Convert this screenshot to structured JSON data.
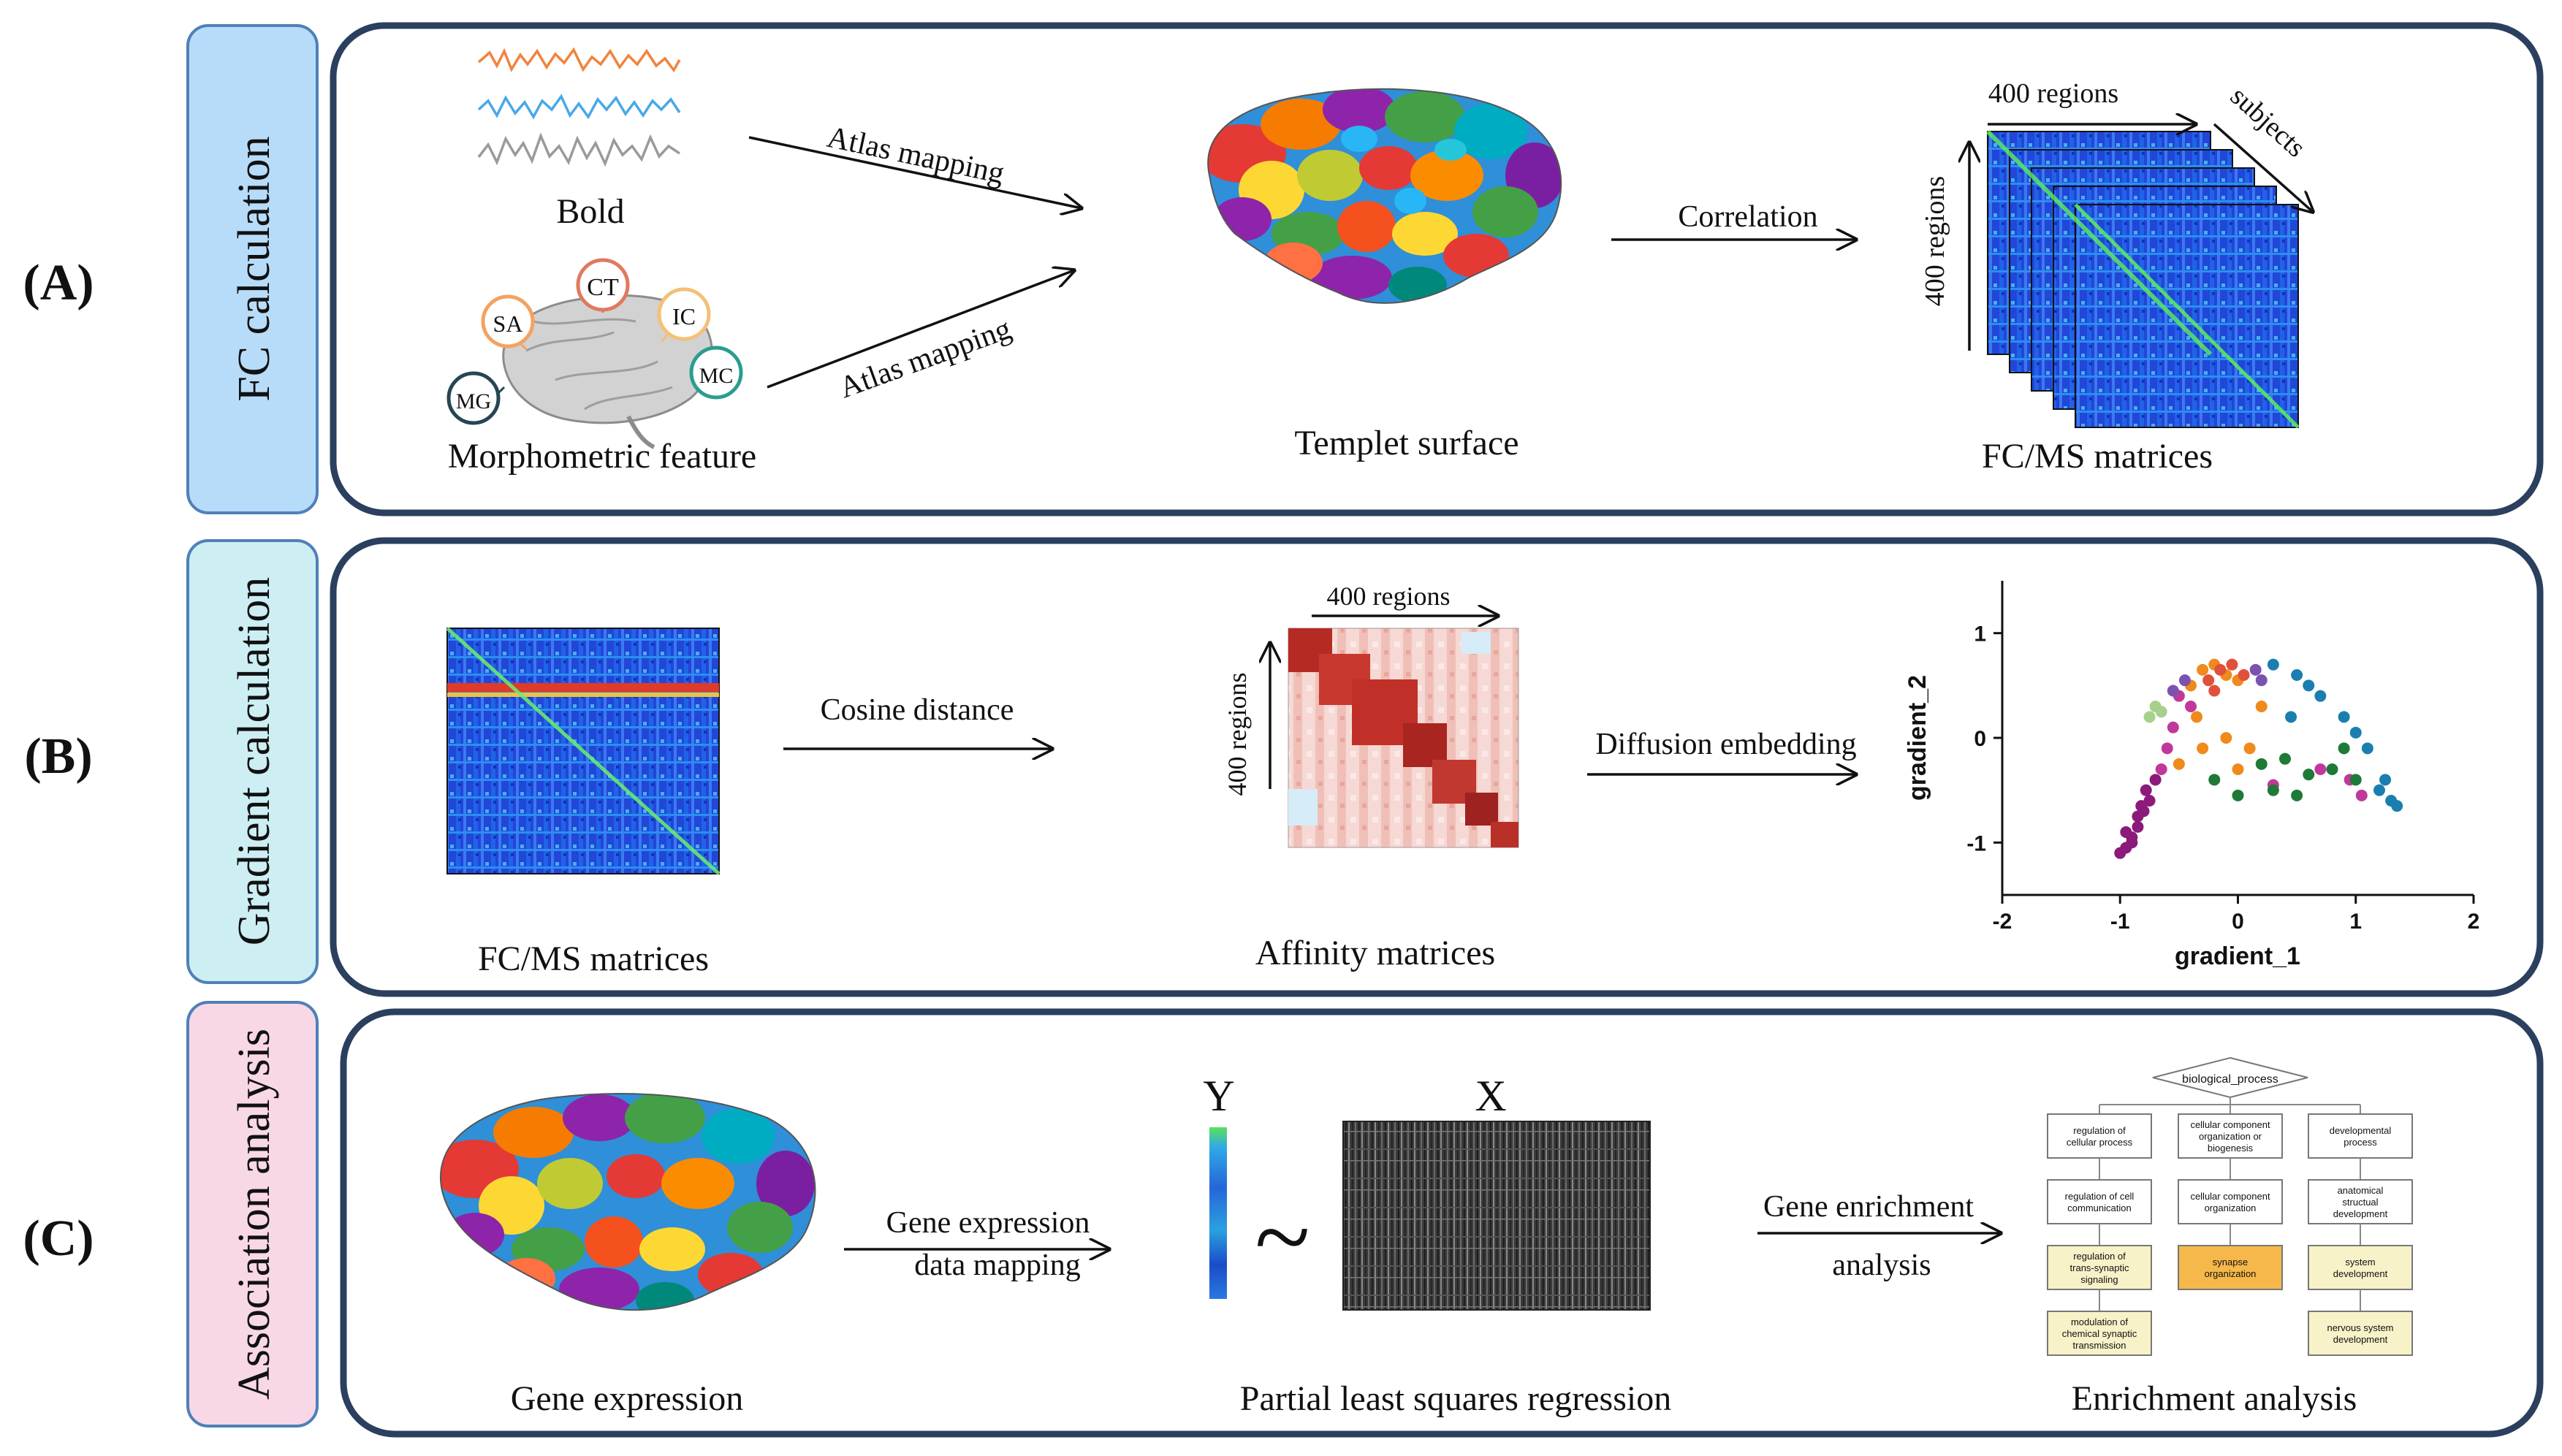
{
  "panels": {
    "a": {
      "letter": "(A)",
      "tab_label": "FC calculation",
      "tab_color": "#b7dcf9",
      "bold_label": "Bold",
      "morph_label": "Morphometric feature",
      "morph_features": [
        "CT",
        "SA",
        "IC",
        "MC",
        "MG"
      ],
      "feature_colors": [
        "#e07a5f",
        "#f4a261",
        "#f4c078",
        "#2a9d8f",
        "#264653"
      ],
      "atlas_mapping_top": "Atlas mapping",
      "atlas_mapping_bottom": "Atlas mapping",
      "template_label": "Templet surface",
      "correlation_label": "Correlation",
      "regions_top": "400 regions",
      "regions_side": "400 regions",
      "subjects_label": "subjects",
      "matrices_label": "FC/MS matrices"
    },
    "b": {
      "letter": "(B)",
      "tab_label": "Gradient calculation",
      "tab_color": "#cdeef3",
      "matrices_label": "FC/MS matrices",
      "cosine_label": "Cosine distance",
      "regions_top": "400 regions",
      "regions_side": "400 regions",
      "affinity_label": "Affinity matrices",
      "diffusion_label": "Diffusion embedding"
    },
    "c": {
      "letter": "(C)",
      "tab_label": "Association analysis",
      "tab_color": "#f8d8e6",
      "gene_expression_label": "Gene expression",
      "mapping_line1": "Gene expression",
      "mapping_line2": "data mapping",
      "y_label": "Y",
      "x_label": "X",
      "tilde": "~",
      "pls_label": "Partial least squares regression",
      "enrich_line1": "Gene enrichment",
      "enrich_line2": "analysis",
      "enrichment_label": "Enrichment analysis",
      "go_tree": {
        "root": "biological_process",
        "col1": [
          [
            "regulation of",
            "cellular process"
          ],
          [
            "regulation of cell",
            "communication"
          ],
          [
            "regulation of",
            "trans-synaptic",
            "signaling"
          ],
          [
            "modulation of",
            "chemical synaptic",
            "transmission"
          ]
        ],
        "col2": [
          [
            "cellular component",
            "organization or",
            "biogenesis"
          ],
          [
            "cellular component",
            "organization"
          ],
          [
            "synapse",
            "organization"
          ]
        ],
        "col3": [
          [
            "developmental",
            "process"
          ],
          [
            "anatomical",
            "structual",
            "development"
          ],
          [
            "system",
            "development"
          ],
          [
            "nervous system",
            "development"
          ]
        ]
      }
    }
  },
  "chart_data": {
    "type": "scatter",
    "xlabel": "gradient_1",
    "ylabel": "gradient_2",
    "xlim": [
      -2,
      2
    ],
    "ylim": [
      -1.5,
      1.5
    ],
    "xticks": [
      -2,
      -1,
      0,
      1,
      2
    ],
    "yticks": [
      1,
      0,
      -1
    ],
    "series": [
      {
        "name": "purple",
        "color": "#8b1a7a",
        "points": [
          [
            -1.0,
            -1.1
          ],
          [
            -0.95,
            -1.05
          ],
          [
            -0.9,
            -0.95
          ],
          [
            -0.85,
            -0.85
          ],
          [
            -0.8,
            -0.7
          ],
          [
            -0.75,
            -0.6
          ],
          [
            -0.85,
            -0.75
          ],
          [
            -0.9,
            -1.0
          ],
          [
            -0.78,
            -0.5
          ],
          [
            -0.7,
            -0.4
          ],
          [
            -0.95,
            -0.9
          ],
          [
            -0.82,
            -0.65
          ]
        ]
      },
      {
        "name": "magenta",
        "color": "#c0399a",
        "points": [
          [
            -0.65,
            -0.3
          ],
          [
            -0.55,
            0.1
          ],
          [
            -0.6,
            -0.1
          ],
          [
            -0.4,
            0.3
          ],
          [
            0.95,
            -0.4
          ],
          [
            1.05,
            -0.55
          ],
          [
            0.7,
            -0.3
          ],
          [
            -0.5,
            0.4
          ],
          [
            0.3,
            -0.45
          ]
        ]
      },
      {
        "name": "orange",
        "color": "#f08a1c",
        "points": [
          [
            -0.3,
            0.65
          ],
          [
            -0.2,
            0.7
          ],
          [
            -0.1,
            0.6
          ],
          [
            0.0,
            0.55
          ],
          [
            -0.4,
            0.5
          ],
          [
            -0.35,
            0.2
          ],
          [
            -0.3,
            -0.1
          ],
          [
            0.0,
            -0.3
          ],
          [
            -0.1,
            0.0
          ],
          [
            0.2,
            0.3
          ],
          [
            -0.5,
            -0.25
          ],
          [
            0.1,
            -0.1
          ]
        ]
      },
      {
        "name": "red",
        "color": "#e0503a",
        "points": [
          [
            -0.15,
            0.65
          ],
          [
            -0.25,
            0.55
          ],
          [
            -0.05,
            0.7
          ],
          [
            0.05,
            0.6
          ],
          [
            -0.2,
            0.45
          ]
        ]
      },
      {
        "name": "green",
        "color": "#1e7a36",
        "points": [
          [
            0.4,
            -0.2
          ],
          [
            0.6,
            -0.35
          ],
          [
            0.8,
            -0.3
          ],
          [
            0.3,
            -0.5
          ],
          [
            1.0,
            -0.4
          ],
          [
            0.2,
            -0.25
          ],
          [
            0.5,
            -0.55
          ],
          [
            0.9,
            -0.1
          ],
          [
            -0.2,
            -0.4
          ],
          [
            0.0,
            -0.55
          ]
        ]
      },
      {
        "name": "teal",
        "color": "#1a7fb0",
        "points": [
          [
            0.3,
            0.7
          ],
          [
            0.5,
            0.6
          ],
          [
            0.7,
            0.4
          ],
          [
            0.9,
            0.2
          ],
          [
            1.1,
            -0.1
          ],
          [
            1.25,
            -0.4
          ],
          [
            1.35,
            -0.65
          ],
          [
            1.3,
            -0.6
          ],
          [
            1.2,
            -0.5
          ],
          [
            0.6,
            0.5
          ],
          [
            1.0,
            0.05
          ],
          [
            0.45,
            0.2
          ]
        ]
      },
      {
        "name": "lightgreen",
        "color": "#a8d08d",
        "points": [
          [
            -0.7,
            0.3
          ],
          [
            -0.65,
            0.25
          ],
          [
            -0.75,
            0.2
          ]
        ]
      },
      {
        "name": "violet",
        "color": "#7b52b0",
        "points": [
          [
            -0.45,
            0.55
          ],
          [
            0.2,
            0.55
          ],
          [
            0.15,
            0.65
          ],
          [
            -0.55,
            0.45
          ]
        ]
      }
    ]
  }
}
